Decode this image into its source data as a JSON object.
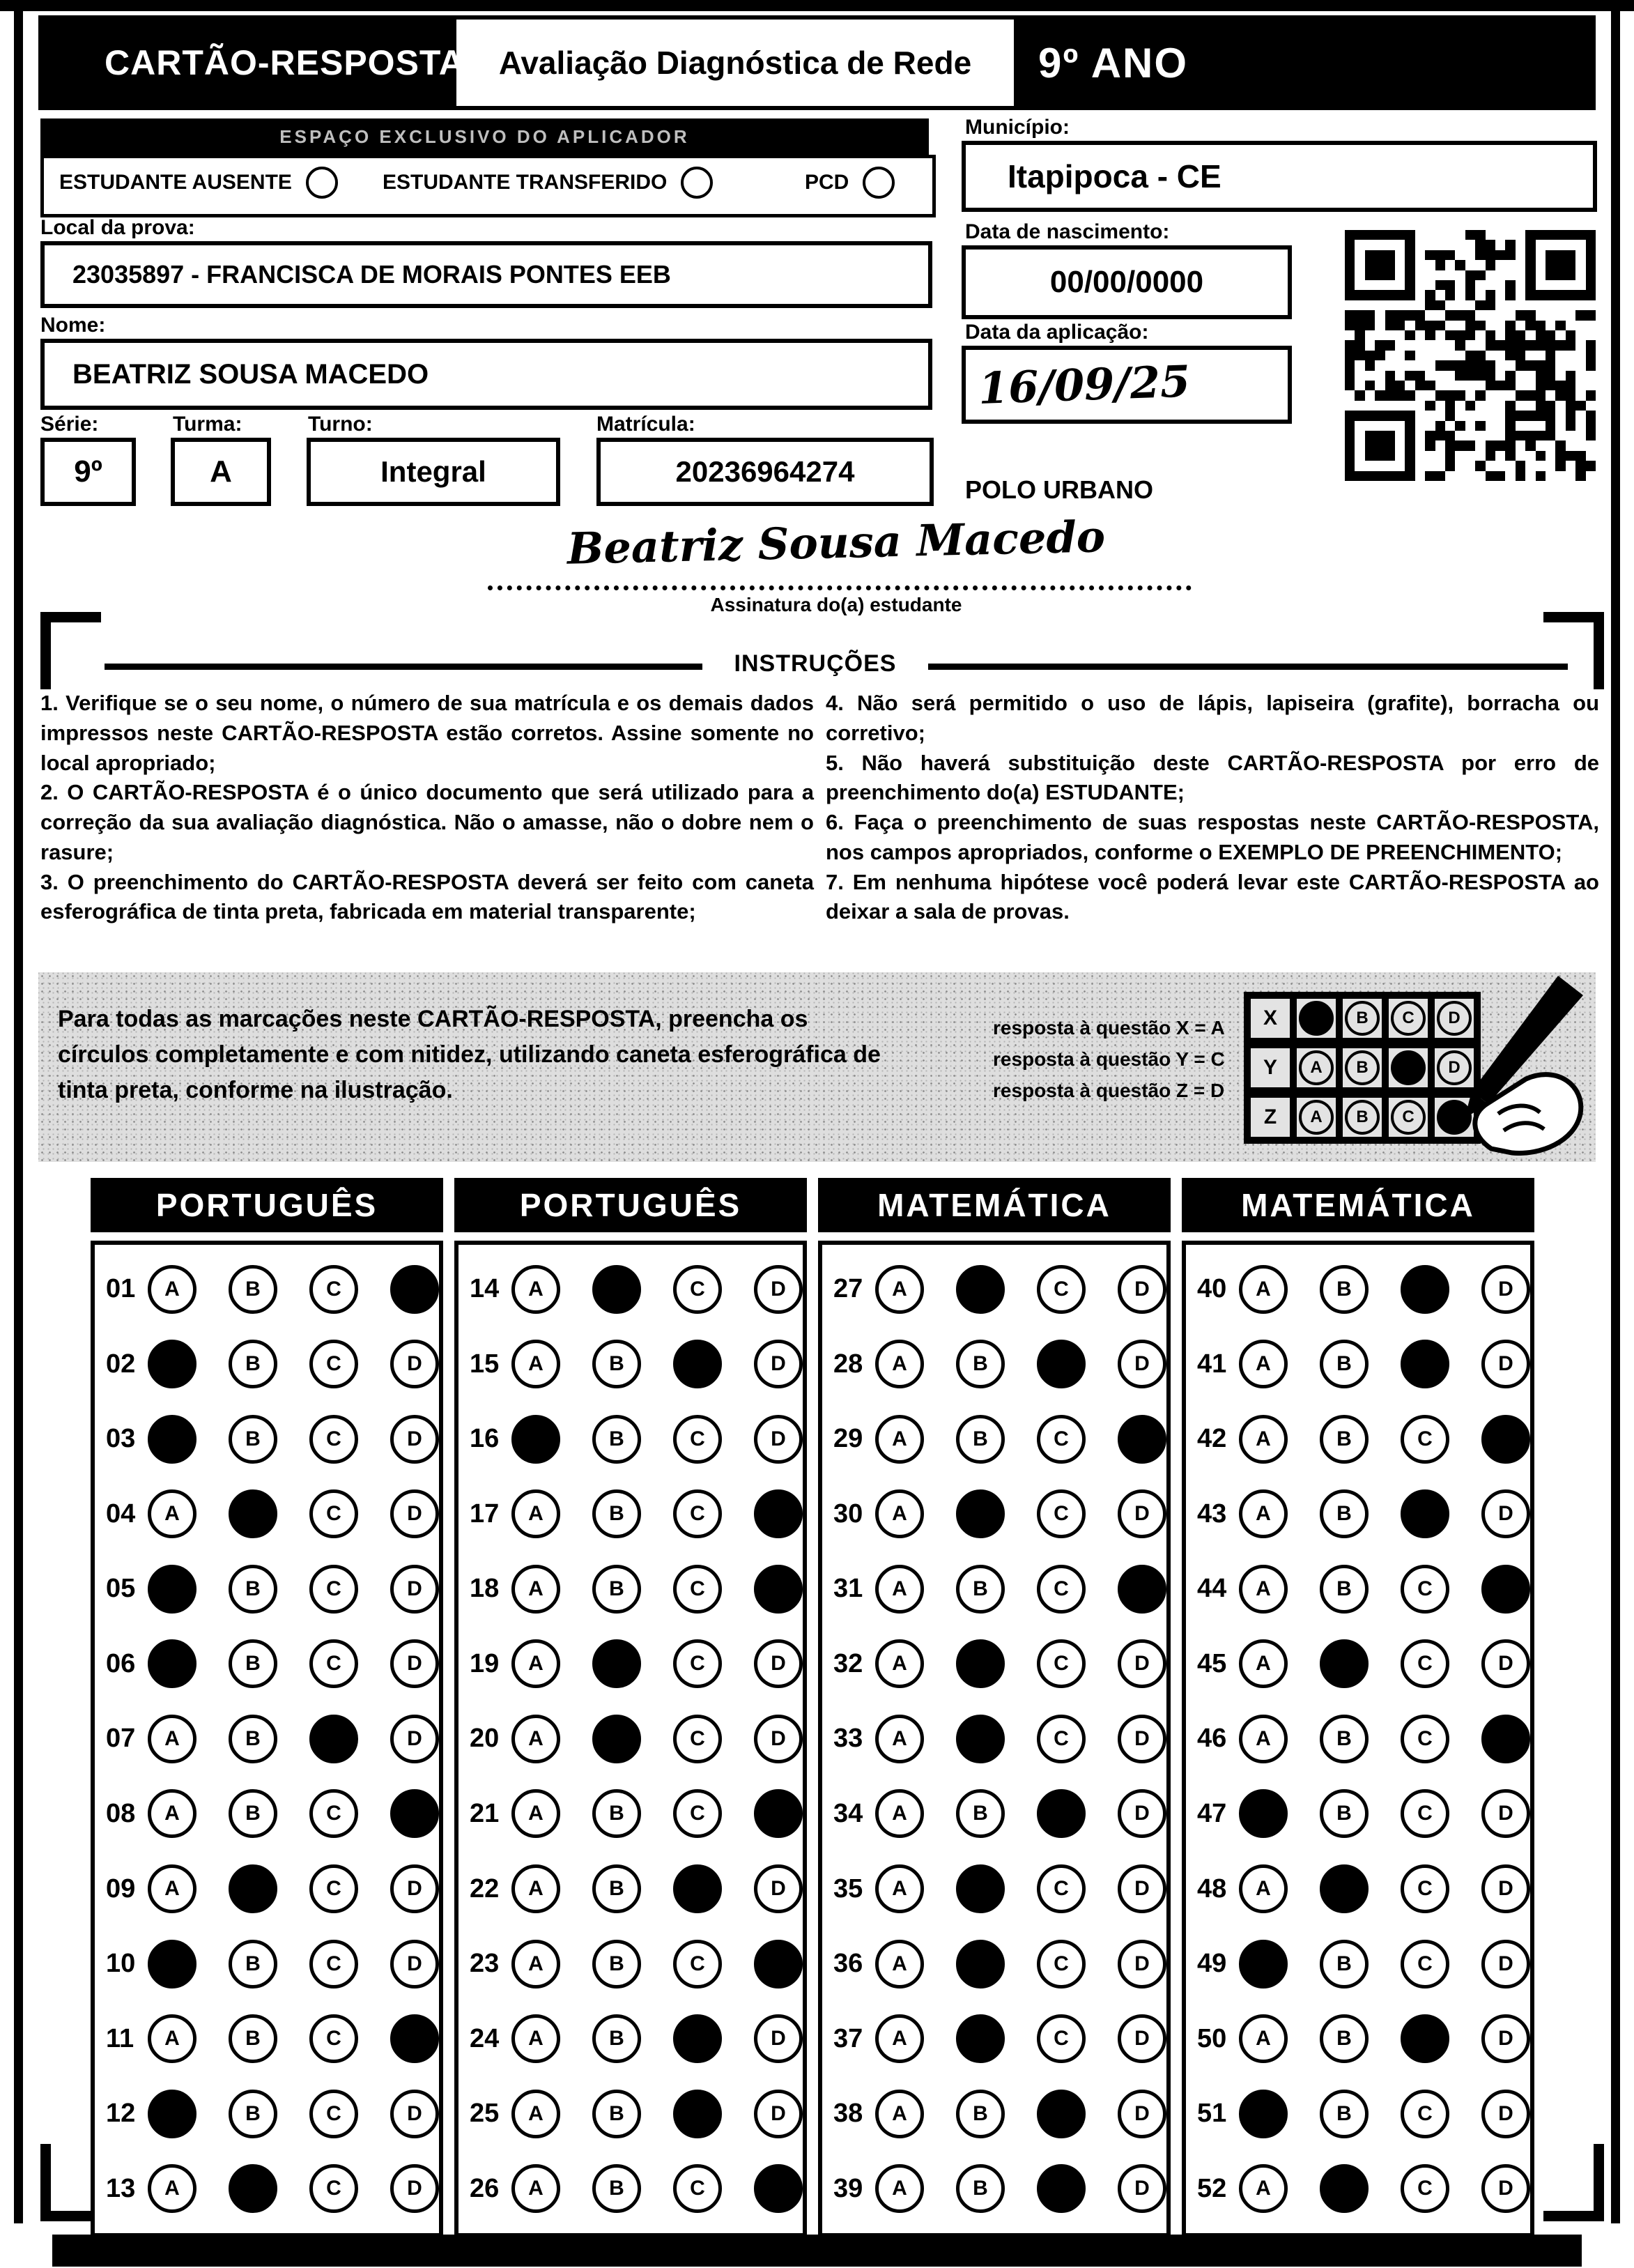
{
  "header": {
    "card_title": "CARTÃO-RESPOSTA",
    "exam_title": "Avaliação Diagnóstica de Rede",
    "grade": "9º ANO"
  },
  "applicator": {
    "bar_label": "ESPAÇO EXCLUSIVO DO APLICADOR",
    "options": [
      "ESTUDANTE AUSENTE",
      "ESTUDANTE TRANSFERIDO",
      "PCD"
    ]
  },
  "fields": {
    "local_label": "Local da prova:",
    "local_value": "23035897 - FRANCISCA DE MORAIS PONTES EEB",
    "nome_label": "Nome:",
    "nome_value": "BEATRIZ SOUSA MACEDO",
    "serie_label": "Série:",
    "serie_value": "9º",
    "turma_label": "Turma:",
    "turma_value": "A",
    "turno_label": "Turno:",
    "turno_value": "Integral",
    "matricula_label": "Matrícula:",
    "matricula_value": "20236964274",
    "municipio_label": "Município:",
    "municipio_value": "Itapipoca - CE",
    "nascimento_label": "Data de nascimento:",
    "nascimento_value": "00/00/0000",
    "aplicacao_label": "Data da aplicação:",
    "aplicacao_value": "16/09/25",
    "polo": "POLO URBANO",
    "signature_value": "Beatriz Sousa Macedo",
    "signature_label": "Assinatura do(a) estudante"
  },
  "instructions": {
    "title": "INSTRUÇÕES",
    "left": [
      "1. Verifique se o seu nome, o número de sua matrícula e os demais dados impressos neste CARTÃO-RESPOSTA estão corretos. Assine somente no local apropriado;",
      "2. O CARTÃO-RESPOSTA é o único documento que será utilizado para a correção da sua avaliação diagnóstica. Não o amasse, não o dobre nem o rasure;",
      "3. O preenchimento do CARTÃO-RESPOSTA deverá ser feito com caneta esferográfica de tinta preta, fabricada em material transparente;"
    ],
    "right": [
      "4. Não será permitido o uso de lápis, lapiseira (grafite), borracha ou corretivo;",
      "5. Não haverá substituição deste CARTÃO-RESPOSTA por erro de preenchimento do(a) ESTUDANTE;",
      "6. Faça o preenchimento de suas respostas neste CARTÃO-RESPOSTA, nos campos apropriados, conforme o EXEMPLO DE PREENCHIMENTO;",
      "7. Em nenhuma hipótese você poderá levar este CARTÃO-RESPOSTA ao deixar a sala de provas."
    ]
  },
  "example": {
    "text": "Para todas as marcações neste CARTÃO-RESPOSTA, preencha os círculos completamente e com nitidez, utilizando caneta esferográfica de tinta preta, conforme na ilustração.",
    "legend": [
      "resposta à questão X = A",
      "resposta à questão Y = C",
      "resposta à questão Z = D"
    ],
    "options": [
      "A",
      "B",
      "C",
      "D"
    ],
    "rows": [
      {
        "label": "X",
        "answer": "A"
      },
      {
        "label": "Y",
        "answer": "C"
      },
      {
        "label": "Z",
        "answer": "D"
      }
    ]
  },
  "answer_sections": [
    {
      "title": "PORTUGUÊS",
      "questions": [
        {
          "n": "01",
          "answer": "D"
        },
        {
          "n": "02",
          "answer": "A"
        },
        {
          "n": "03",
          "answer": "A"
        },
        {
          "n": "04",
          "answer": "B"
        },
        {
          "n": "05",
          "answer": "A"
        },
        {
          "n": "06",
          "answer": "A"
        },
        {
          "n": "07",
          "answer": "C"
        },
        {
          "n": "08",
          "answer": "D"
        },
        {
          "n": "09",
          "answer": "B"
        },
        {
          "n": "10",
          "answer": "A"
        },
        {
          "n": "11",
          "answer": "D"
        },
        {
          "n": "12",
          "answer": "A"
        },
        {
          "n": "13",
          "answer": "B"
        }
      ]
    },
    {
      "title": "PORTUGUÊS",
      "questions": [
        {
          "n": "14",
          "answer": "B"
        },
        {
          "n": "15",
          "answer": "C"
        },
        {
          "n": "16",
          "answer": "A"
        },
        {
          "n": "17",
          "answer": "D"
        },
        {
          "n": "18",
          "answer": "D"
        },
        {
          "n": "19",
          "answer": "B"
        },
        {
          "n": "20",
          "answer": "B"
        },
        {
          "n": "21",
          "answer": "D"
        },
        {
          "n": "22",
          "answer": "C"
        },
        {
          "n": "23",
          "answer": "D"
        },
        {
          "n": "24",
          "answer": "C"
        },
        {
          "n": "25",
          "answer": "C"
        },
        {
          "n": "26",
          "answer": "D"
        }
      ]
    },
    {
      "title": "MATEMÁTICA",
      "questions": [
        {
          "n": "27",
          "answer": "B"
        },
        {
          "n": "28",
          "answer": "C"
        },
        {
          "n": "29",
          "answer": "D"
        },
        {
          "n": "30",
          "answer": "B"
        },
        {
          "n": "31",
          "answer": "D"
        },
        {
          "n": "32",
          "answer": "B"
        },
        {
          "n": "33",
          "answer": "B"
        },
        {
          "n": "34",
          "answer": "C"
        },
        {
          "n": "35",
          "answer": "B"
        },
        {
          "n": "36",
          "answer": "B"
        },
        {
          "n": "37",
          "answer": "B"
        },
        {
          "n": "38",
          "answer": "C"
        },
        {
          "n": "39",
          "answer": "C"
        }
      ]
    },
    {
      "title": "MATEMÁTICA",
      "questions": [
        {
          "n": "40",
          "answer": "C"
        },
        {
          "n": "41",
          "answer": "C"
        },
        {
          "n": "42",
          "answer": "D"
        },
        {
          "n": "43",
          "answer": "C"
        },
        {
          "n": "44",
          "answer": "D"
        },
        {
          "n": "45",
          "answer": "B"
        },
        {
          "n": "46",
          "answer": "D"
        },
        {
          "n": "47",
          "answer": "A"
        },
        {
          "n": "48",
          "answer": "B"
        },
        {
          "n": "49",
          "answer": "A"
        },
        {
          "n": "50",
          "answer": "C"
        },
        {
          "n": "51",
          "answer": "A"
        },
        {
          "n": "52",
          "answer": "B"
        }
      ]
    }
  ],
  "colors": {
    "ink": "#000000",
    "paper": "#ffffff",
    "example_band": "#dedede"
  }
}
